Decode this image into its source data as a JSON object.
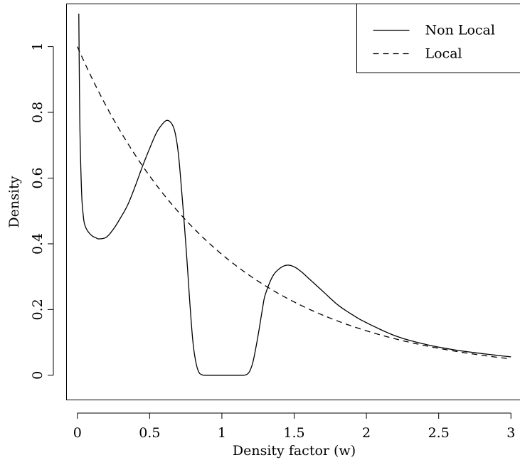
{
  "chart_data": {
    "type": "line",
    "title": "",
    "xlabel": "Density factor (w)",
    "ylabel": "Density",
    "xlim": [
      -0.075,
      3.075
    ],
    "ylim": [
      -0.075,
      1.13
    ],
    "xticks": [
      0,
      0.5,
      1,
      1.5,
      2,
      2.5,
      3
    ],
    "xtick_labels": [
      "0",
      "0.5",
      "1",
      "1.5",
      "2",
      "2.5",
      "3"
    ],
    "yticks": [
      0,
      0.2,
      0.4,
      0.6,
      0.8,
      1
    ],
    "ytick_labels": [
      "0",
      "0.2",
      "0.4",
      "0.6",
      "0.8",
      "1"
    ],
    "grid": false,
    "legend_position": "top-right",
    "series": [
      {
        "name": "Non Local",
        "style": "solid",
        "color": "#000000",
        "x": [
          0.01,
          0.015,
          0.02,
          0.03,
          0.04,
          0.05,
          0.07,
          0.1,
          0.13,
          0.15,
          0.2,
          0.25,
          0.3,
          0.35,
          0.4,
          0.45,
          0.5,
          0.55,
          0.6,
          0.63,
          0.66,
          0.68,
          0.7,
          0.72,
          0.74,
          0.76,
          0.78,
          0.8,
          0.82,
          0.84,
          0.86,
          0.88,
          0.9,
          1.0,
          1.1,
          1.15,
          1.18,
          1.2,
          1.22,
          1.25,
          1.28,
          1.3,
          1.35,
          1.4,
          1.45,
          1.5,
          1.55,
          1.6,
          1.7,
          1.8,
          1.9,
          2.0,
          2.2,
          2.4,
          2.6,
          2.8,
          3.0
        ],
        "y": [
          1.1,
          0.85,
          0.7,
          0.55,
          0.49,
          0.46,
          0.44,
          0.425,
          0.418,
          0.415,
          0.42,
          0.445,
          0.48,
          0.52,
          0.575,
          0.635,
          0.69,
          0.74,
          0.77,
          0.775,
          0.76,
          0.73,
          0.67,
          0.57,
          0.46,
          0.34,
          0.21,
          0.1,
          0.04,
          0.01,
          0.002,
          0.0,
          0.0,
          0.0,
          0.0,
          0.0,
          0.005,
          0.02,
          0.05,
          0.12,
          0.2,
          0.245,
          0.3,
          0.325,
          0.335,
          0.33,
          0.315,
          0.295,
          0.255,
          0.215,
          0.185,
          0.16,
          0.12,
          0.095,
          0.078,
          0.066,
          0.056
        ]
      },
      {
        "name": "Local",
        "style": "dashed",
        "color": "#000000",
        "function": "exp(-x)",
        "x": [
          0,
          0.25,
          0.5,
          0.75,
          1.0,
          1.25,
          1.5,
          1.75,
          2.0,
          2.25,
          2.5,
          2.75,
          3.0
        ],
        "y": [
          1.0,
          0.7788,
          0.6065,
          0.4724,
          0.3679,
          0.2865,
          0.2231,
          0.1738,
          0.1353,
          0.1054,
          0.0821,
          0.0639,
          0.0498
        ]
      }
    ]
  }
}
